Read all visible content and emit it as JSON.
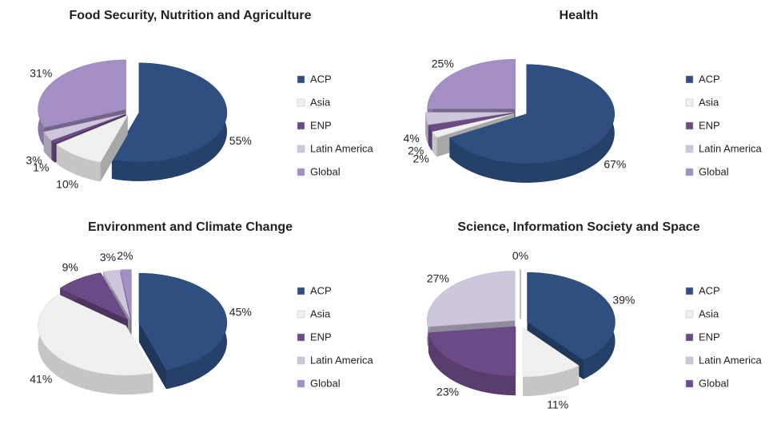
{
  "chart_data": [
    {
      "type": "pie",
      "title": "Food Security, Nutrition and Agriculture",
      "categories": [
        "ACP",
        "Asia",
        "ENP",
        "Latin America",
        "Global"
      ],
      "values": [
        55,
        10,
        1,
        3,
        31
      ],
      "value_labels": [
        "55%",
        "10%",
        "1%",
        "3%",
        "31%"
      ],
      "colors": [
        "#2e4f80",
        "#f0f0f0",
        "#6b4a86",
        "#cdc6dc",
        "#a48fc4"
      ]
    },
    {
      "type": "pie",
      "title": "Health",
      "categories": [
        "ACP",
        "Asia",
        "ENP",
        "Latin America",
        "Global"
      ],
      "values": [
        67,
        2,
        2,
        4,
        25
      ],
      "value_labels": [
        "67%",
        "2%",
        "2%",
        "4%",
        "25%"
      ],
      "colors": [
        "#2e4f80",
        "#f0f0f0",
        "#6b4a86",
        "#cdc6dc",
        "#a48fc4"
      ]
    },
    {
      "type": "pie",
      "title": "Environment and Climate Change",
      "categories": [
        "ACP",
        "Asia",
        "ENP",
        "Latin America",
        "Global"
      ],
      "values": [
        45,
        41,
        9,
        3,
        2
      ],
      "value_labels": [
        "45%",
        "41%",
        "9%",
        "3%",
        "2%"
      ],
      "colors": [
        "#2e4f80",
        "#f0f0f0",
        "#6b4a86",
        "#cdc6dc",
        "#a48fc4"
      ]
    },
    {
      "type": "pie",
      "title": "Science, Information Society and Space",
      "categories": [
        "ACP",
        "Asia",
        "ENP",
        "Latin America",
        "Global"
      ],
      "values": [
        39,
        11,
        23,
        27,
        0
      ],
      "value_labels": [
        "39%",
        "11%",
        "23%",
        "27%",
        "0%"
      ],
      "colors": [
        "#2e4f80",
        "#f0f0f0",
        "#6b4a86",
        "#cdc6dc",
        "#6a4c8e"
      ]
    }
  ]
}
